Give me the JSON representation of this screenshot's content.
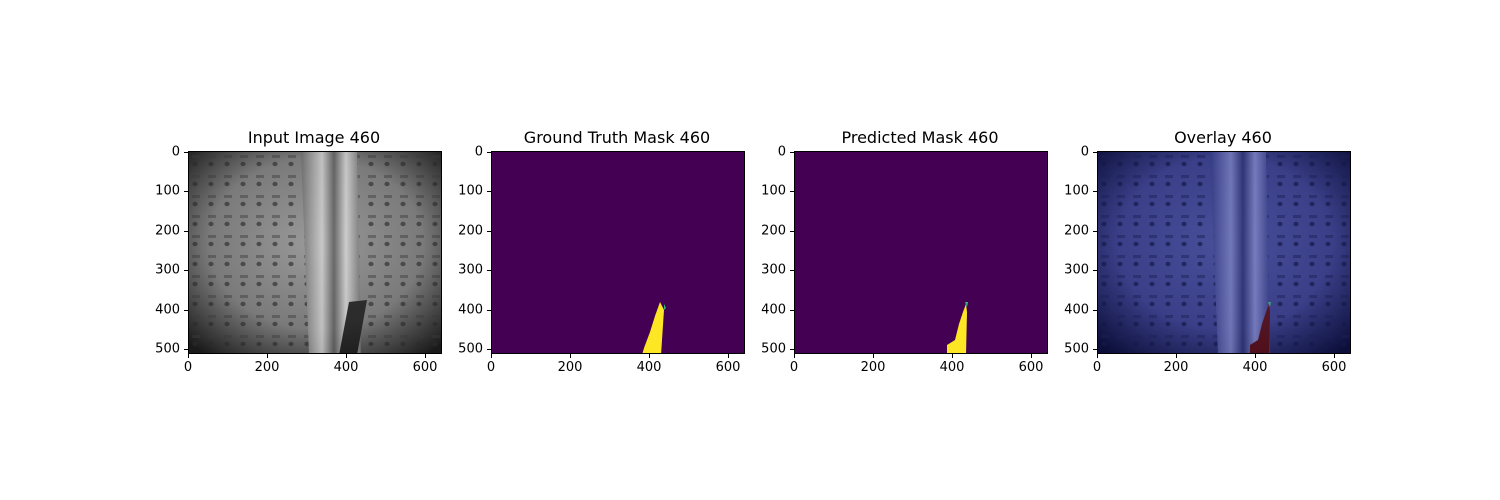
{
  "figure": {
    "panels": [
      {
        "id": "input",
        "title": "Input Image 460",
        "kind": "image"
      },
      {
        "id": "gt",
        "title": "Ground Truth Mask 460",
        "kind": "mask"
      },
      {
        "id": "pred",
        "title": "Predicted Mask 460",
        "kind": "mask"
      },
      {
        "id": "overlay",
        "title": "Overlay 460",
        "kind": "overlay"
      }
    ],
    "x_ticks": [
      "0",
      "200",
      "400",
      "600"
    ],
    "y_ticks": [
      "0",
      "100",
      "200",
      "300",
      "400",
      "500"
    ],
    "image_width": 640,
    "image_height": 512,
    "colors": {
      "mask_background": "#440154",
      "mask_foreground": "#fde725",
      "overlay_background": "#1b1f5e",
      "overlay_mask": "#5a0a0a"
    }
  }
}
